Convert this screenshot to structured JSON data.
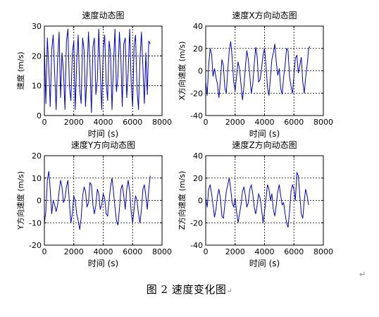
{
  "chart_data": [
    {
      "type": "line",
      "title": "速度动态图",
      "xlabel": "时间 (s)",
      "ylabel": "速度 (m/s)",
      "xlim": [
        0,
        8000
      ],
      "ylim": [
        0,
        30
      ],
      "xticks": [
        "0",
        "2000",
        "4000",
        "6000",
        "8000"
      ],
      "yticks": [
        "0",
        "10",
        "20",
        "30"
      ],
      "grid": true,
      "color": "#0000cc",
      "series": [
        {
          "x": [
            0,
            100,
            200,
            300,
            400,
            500,
            600,
            700,
            800,
            900,
            1000,
            1100,
            1200,
            1300,
            1400,
            1500,
            1600,
            1700,
            1800,
            1900,
            2000,
            2100,
            2200,
            2300,
            2400,
            2500,
            2600,
            2700,
            2800,
            2900,
            3000,
            3100,
            3200,
            3300,
            3400,
            3500,
            3600,
            3700,
            3800,
            3900,
            4000,
            4100,
            4200,
            4300,
            4400,
            4500,
            4600,
            4700,
            4800,
            4900,
            5000,
            5100,
            5200,
            5300,
            5400,
            5500,
            5600,
            5700,
            5800,
            5900,
            6000,
            6100,
            6200,
            6300,
            6400,
            6500,
            6600,
            6700,
            6800,
            6900,
            7000,
            7100,
            7200
          ],
          "y": [
            24,
            4,
            26,
            16,
            3,
            22,
            27,
            14,
            2,
            19,
            28,
            6,
            21,
            15,
            2,
            25,
            29,
            10,
            5,
            21,
            25,
            2,
            18,
            27,
            9,
            4,
            26,
            22,
            3,
            14,
            28,
            17,
            1,
            23,
            26,
            7,
            12,
            29,
            15,
            2,
            22,
            27,
            11,
            5,
            25,
            21,
            2,
            17,
            29,
            8,
            13,
            28,
            19,
            3,
            24,
            26,
            6,
            15,
            29,
            11,
            3,
            23,
            27,
            9,
            2,
            19,
            28,
            16,
            4,
            21,
            7,
            25,
            24
          ]
        }
      ]
    },
    {
      "type": "line",
      "title": "速度X方向动态图",
      "xlabel": "时间 (s)",
      "ylabel": "X方向速度 (m/s)",
      "xlim": [
        0,
        8000
      ],
      "ylim": [
        -40,
        40
      ],
      "xticks": [
        "0",
        "2000",
        "4000",
        "6000",
        "8000"
      ],
      "yticks": [
        "-40",
        "-20",
        "0",
        "20",
        "40"
      ],
      "grid": true,
      "color": "#0000cc",
      "series": [
        {
          "x": [
            0,
            100,
            200,
            300,
            400,
            500,
            600,
            700,
            800,
            900,
            1000,
            1100,
            1200,
            1300,
            1400,
            1500,
            1600,
            1700,
            1800,
            1900,
            2000,
            2100,
            2200,
            2300,
            2400,
            2500,
            2600,
            2700,
            2800,
            2900,
            3000,
            3100,
            3200,
            3300,
            3400,
            3500,
            3600,
            3700,
            3800,
            3900,
            4000,
            4100,
            4200,
            4300,
            4400,
            4500,
            4600,
            4700,
            4800,
            4900,
            5000,
            5100,
            5200,
            5300,
            5400,
            5500,
            5600,
            5700,
            5800,
            5900,
            6000,
            6100,
            6200,
            6300,
            6400,
            6500,
            6600,
            6700,
            6800,
            6900,
            7000,
            7100
          ],
          "y": [
            -10,
            -22,
            5,
            20,
            15,
            -5,
            2,
            -6,
            -12,
            -24,
            -8,
            10,
            5,
            -15,
            -20,
            0,
            18,
            26,
            12,
            -10,
            -18,
            -5,
            8,
            2,
            -12,
            -26,
            -14,
            4,
            18,
            10,
            -4,
            -20,
            -12,
            6,
            21,
            12,
            -10,
            -8,
            2,
            14,
            20,
            5,
            -15,
            -22,
            -6,
            10,
            16,
            24,
            8,
            -4,
            2,
            -16,
            -21,
            -6,
            5,
            20,
            18,
            -5,
            -14,
            -20,
            -4,
            11,
            14,
            -2,
            5,
            12,
            -10,
            -20,
            -6,
            5,
            20,
            22
          ]
        }
      ]
    },
    {
      "type": "line",
      "title": "速度Y方向动态图",
      "xlabel": "时间 (s)",
      "ylabel": "Y方向速度 (m/s)",
      "xlim": [
        0,
        8000
      ],
      "ylim": [
        -20,
        20
      ],
      "xticks": [
        "0",
        "2000",
        "4000",
        "6000",
        "8000"
      ],
      "yticks": [
        "-20",
        "-10",
        "0",
        "10",
        "20"
      ],
      "grid": true,
      "color": "#0000cc",
      "series": [
        {
          "x": [
            0,
            100,
            200,
            300,
            400,
            500,
            600,
            700,
            800,
            900,
            1000,
            1100,
            1200,
            1300,
            1400,
            1500,
            1600,
            1700,
            1800,
            1900,
            2000,
            2100,
            2200,
            2300,
            2400,
            2500,
            2600,
            2700,
            2800,
            2900,
            3000,
            3100,
            3200,
            3300,
            3400,
            3500,
            3600,
            3700,
            3800,
            3900,
            4000,
            4100,
            4200,
            4300,
            4400,
            4500,
            4600,
            4700,
            4800,
            4900,
            5000,
            5100,
            5200,
            5300,
            5400,
            5500,
            5600,
            5700,
            5800,
            5900,
            6000,
            6100,
            6200,
            6300,
            6400,
            6500,
            6600,
            6700,
            6800,
            6900,
            7000,
            7100,
            7200
          ],
          "y": [
            -10,
            -5,
            9,
            13,
            5,
            -6,
            0,
            -2,
            -5,
            -2,
            4,
            9,
            6,
            -1,
            1,
            6,
            9,
            -1,
            -10,
            -6,
            2,
            0,
            -6,
            -9,
            -13,
            -8,
            2,
            6,
            4,
            -3,
            -1,
            8,
            7,
            -2,
            -6,
            -2,
            5,
            3,
            -4,
            -2,
            3,
            1,
            -6,
            -7,
            0,
            6,
            10,
            4,
            -3,
            -9,
            -11,
            -4,
            5,
            7,
            2,
            -4,
            5,
            9,
            4,
            -5,
            -10,
            -4,
            2,
            0,
            -6,
            -10,
            -4,
            5,
            7,
            2,
            -4,
            5,
            11
          ]
        }
      ]
    },
    {
      "type": "line",
      "title": "速度Z方向动态图",
      "xlabel": "时间 (s)",
      "ylabel": "Z方向速度 (m/s)",
      "xlim": [
        0,
        8000
      ],
      "ylim": [
        -40,
        40
      ],
      "xticks": [
        "0",
        "2000",
        "4000",
        "6000",
        "8000"
      ],
      "yticks": [
        "-40",
        "-20",
        "0",
        "20",
        "40"
      ],
      "grid": true,
      "color": "#0000cc",
      "series": [
        {
          "x": [
            0,
            100,
            200,
            300,
            400,
            500,
            600,
            700,
            800,
            900,
            1000,
            1100,
            1200,
            1300,
            1400,
            1500,
            1600,
            1700,
            1800,
            1900,
            2000,
            2100,
            2200,
            2300,
            2400,
            2500,
            2600,
            2700,
            2800,
            2900,
            3000,
            3100,
            3200,
            3300,
            3400,
            3500,
            3600,
            3700,
            3800,
            3900,
            4000,
            4100,
            4200,
            4300,
            4400,
            4500,
            4600,
            4700,
            4800,
            4900,
            5000,
            5100,
            5200,
            5300,
            5400,
            5500,
            5600,
            5700,
            5800,
            5900,
            6000,
            6100,
            6200,
            6300,
            6400,
            6500,
            6600,
            6700,
            6800,
            6900,
            7000
          ],
          "y": [
            2,
            -6,
            10,
            14,
            6,
            -4,
            -15,
            -8,
            4,
            10,
            2,
            -14,
            -16,
            -4,
            8,
            14,
            20,
            10,
            -2,
            -6,
            2,
            -10,
            -20,
            -12,
            -4,
            8,
            12,
            4,
            -6,
            -2,
            10,
            14,
            6,
            -6,
            -12,
            -4,
            6,
            2,
            -8,
            -20,
            -10,
            2,
            14,
            10,
            0,
            6,
            -8,
            -14,
            -4,
            8,
            14,
            4,
            -4,
            -2,
            -12,
            -20,
            -24,
            -10,
            8,
            14,
            10,
            0,
            25,
            22,
            4,
            -12,
            -16,
            0,
            10,
            4,
            -4
          ]
        }
      ]
    }
  ],
  "caption": "图 2  速度变化图",
  "para_mark": "↵"
}
